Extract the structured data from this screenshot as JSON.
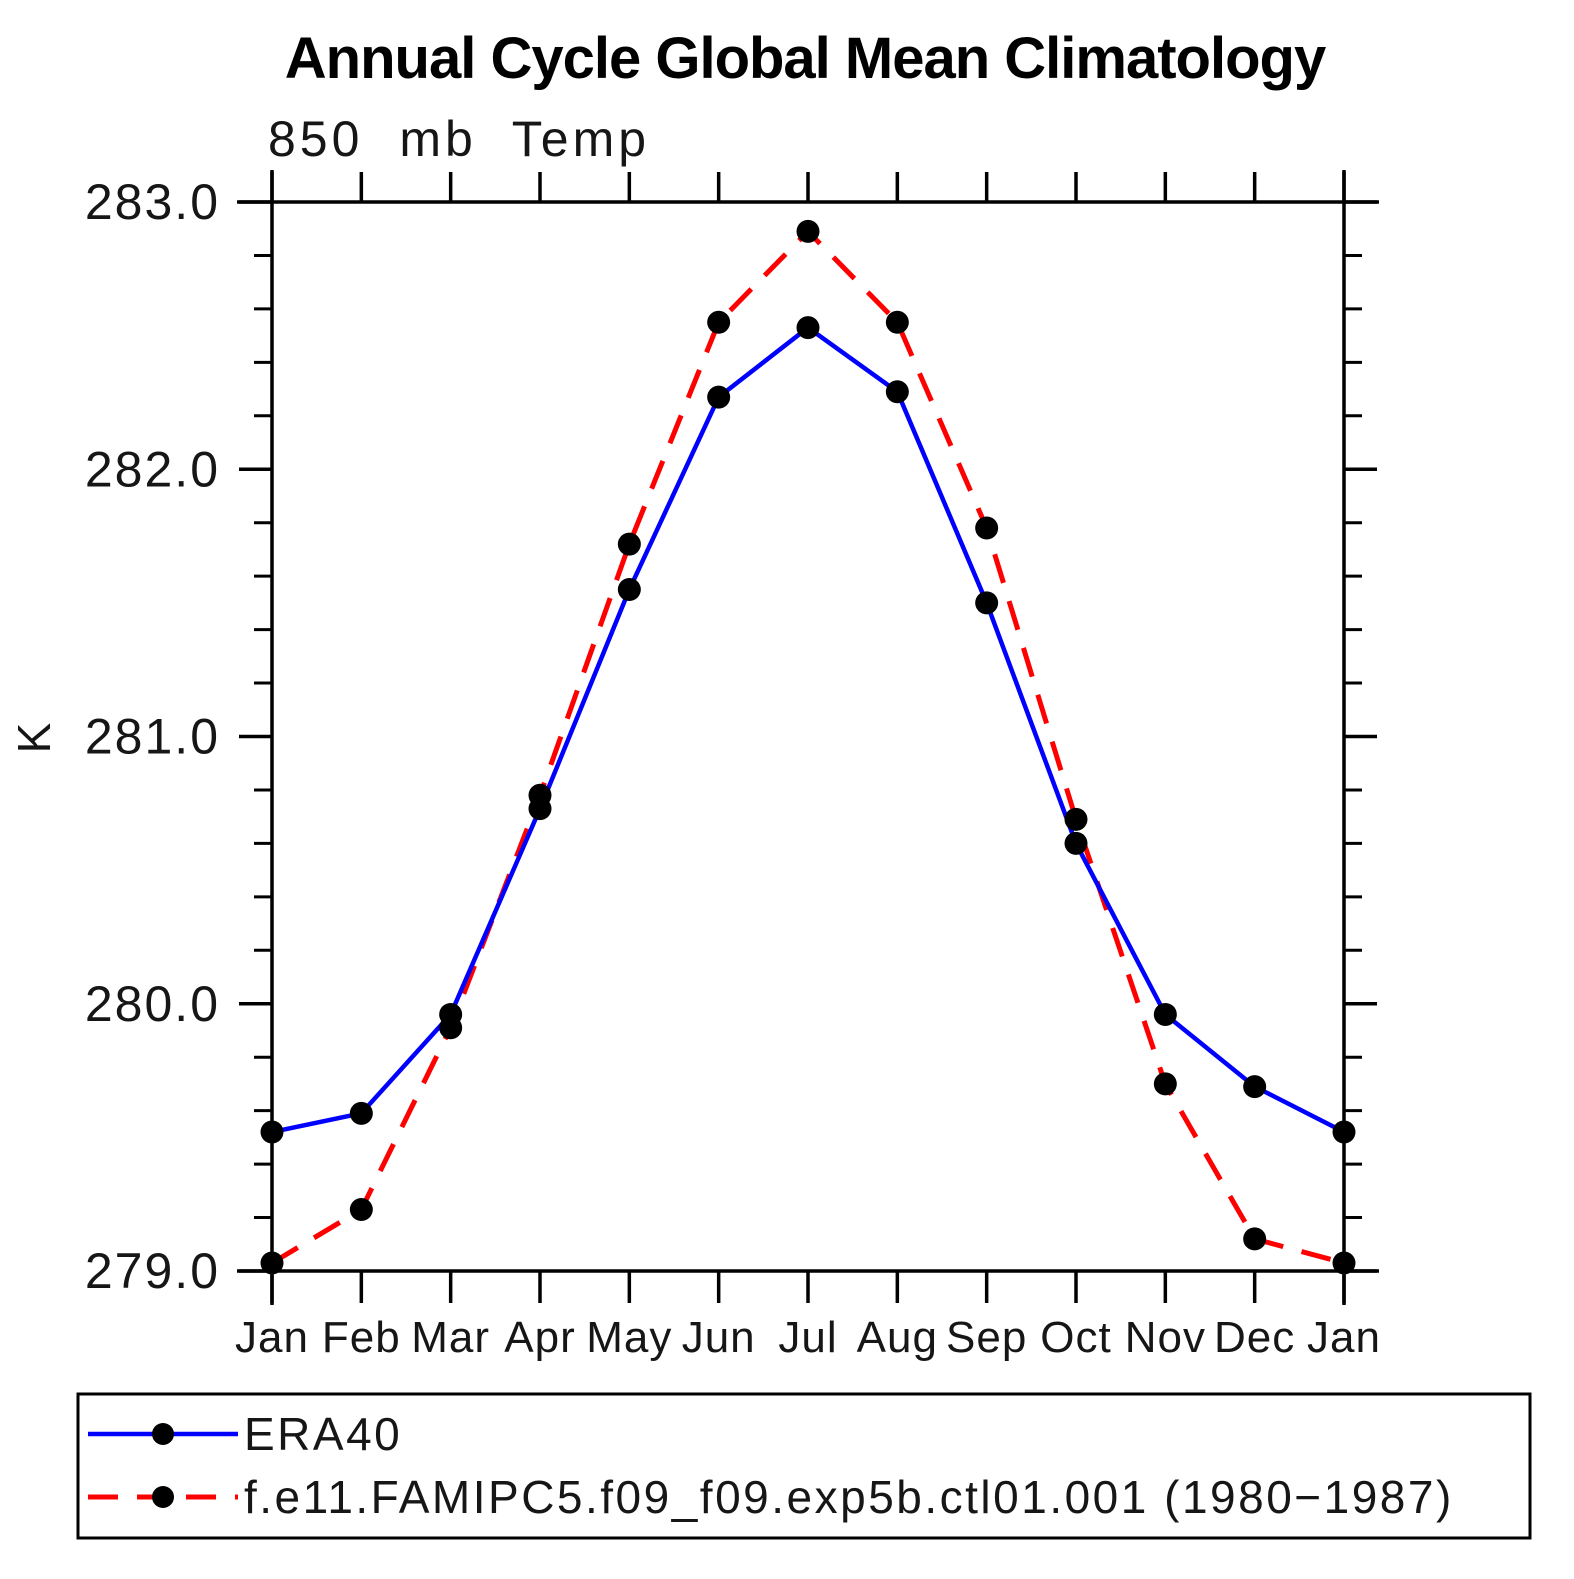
{
  "chart": {
    "title": "Annual Cycle Global Mean Climatology",
    "subtitle": "850 mb Temp",
    "ylabel": "K"
  },
  "chart_data": {
    "type": "line",
    "categories": [
      "Jan",
      "Feb",
      "Mar",
      "Apr",
      "May",
      "Jun",
      "Jul",
      "Aug",
      "Sep",
      "Oct",
      "Nov",
      "Dec",
      "Jan"
    ],
    "series": [
      {
        "name": "ERA40",
        "color": "#0000ff",
        "line_style": "solid",
        "marker": "filled-circle",
        "marker_color": "#000000",
        "values": [
          279.52,
          279.59,
          279.96,
          280.73,
          281.55,
          282.27,
          282.53,
          282.29,
          281.5,
          280.6,
          279.96,
          279.69,
          279.52
        ]
      },
      {
        "name": "f.e11.FAMIPC5.f09_f09.exp5b.ctl01.001 (1980−1987)",
        "color": "#ff0000",
        "line_style": "dashed",
        "marker": "filled-circle",
        "marker_color": "#000000",
        "values": [
          279.03,
          279.23,
          279.91,
          280.78,
          281.72,
          282.55,
          282.89,
          282.55,
          281.78,
          280.69,
          279.7,
          279.12,
          279.03
        ]
      }
    ],
    "xlabel": "",
    "ylabel": "K",
    "ylim": [
      279.0,
      283.0
    ],
    "ytick_step": 1.0,
    "yminor_step": 0.2,
    "ytick_decimals": 1,
    "grid": false,
    "legend_position": "bottom",
    "axis_color": "#000000"
  }
}
